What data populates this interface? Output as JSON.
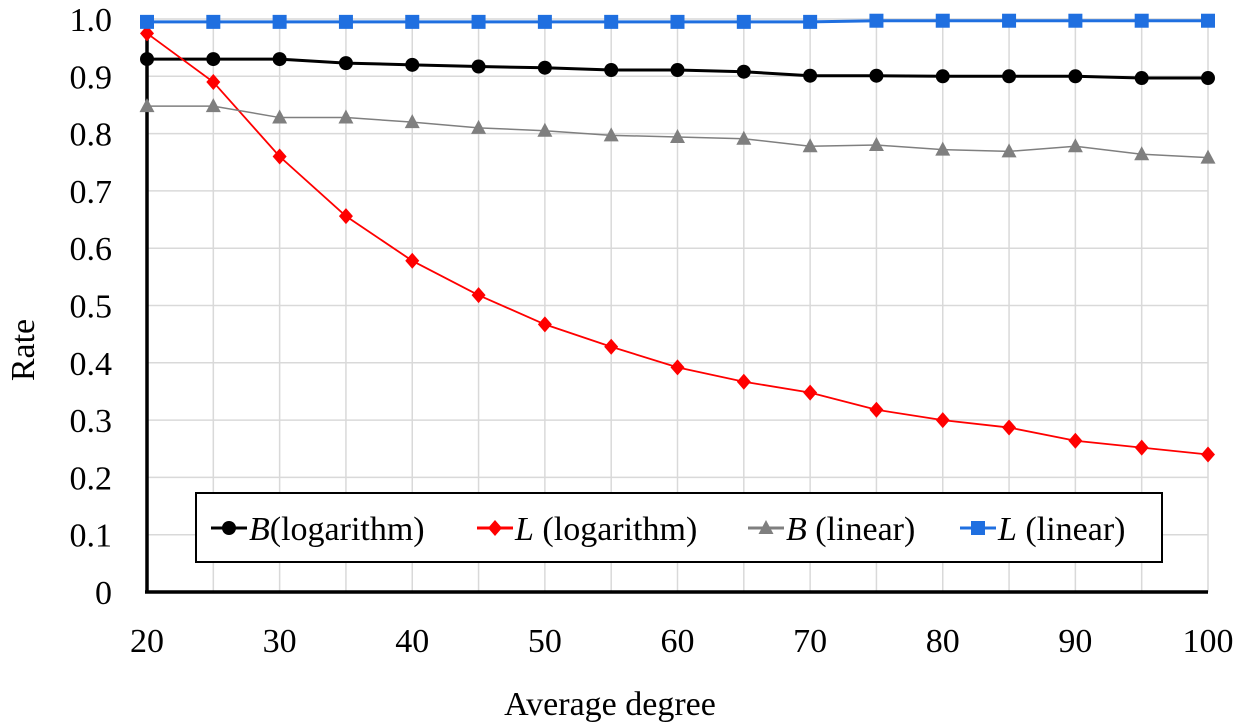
{
  "chart_data": {
    "type": "line",
    "title": "",
    "xlabel": "Average degree",
    "ylabel": "Rate",
    "x": [
      20,
      25,
      30,
      35,
      40,
      45,
      50,
      55,
      60,
      65,
      70,
      75,
      80,
      85,
      90,
      95,
      100
    ],
    "xticks": [
      "20",
      "30",
      "40",
      "50",
      "60",
      "70",
      "80",
      "90",
      "100"
    ],
    "yticks": [
      "0",
      "0.1",
      "0.2",
      "0.3",
      "0.4",
      "0.5",
      "0.6",
      "0.7",
      "0.8",
      "0.9",
      "1.0"
    ],
    "xlim": [
      20,
      100
    ],
    "ylim": [
      0,
      1.0
    ],
    "grid": true,
    "legend_position": "bottom-center",
    "series": [
      {
        "legend_symbol": "B",
        "legend_text": "(logarithm)",
        "color": "#000000",
        "marker": "circle",
        "values": [
          0.93,
          0.93,
          0.93,
          0.923,
          0.92,
          0.917,
          0.915,
          0.911,
          0.911,
          0.908,
          0.901,
          0.901,
          0.9,
          0.9,
          0.9,
          0.897,
          0.897
        ]
      },
      {
        "legend_symbol": "L",
        "legend_text": " (logarithm)",
        "color": "#ff0000",
        "marker": "diamond",
        "values": [
          0.975,
          0.89,
          0.76,
          0.656,
          0.578,
          0.518,
          0.467,
          0.428,
          0.392,
          0.367,
          0.348,
          0.318,
          0.3,
          0.287,
          0.264,
          0.252,
          0.24
        ]
      },
      {
        "legend_symbol": "B",
        "legend_text": " (linear)",
        "color": "#7f7f7f",
        "marker": "triangle",
        "values": [
          0.848,
          0.848,
          0.828,
          0.828,
          0.82,
          0.81,
          0.805,
          0.797,
          0.794,
          0.791,
          0.778,
          0.78,
          0.772,
          0.769,
          0.778,
          0.764,
          0.758
        ]
      },
      {
        "legend_symbol": "L",
        "legend_text": " (linear)",
        "color": "#1f6fe0",
        "marker": "square",
        "values": [
          0.995,
          0.995,
          0.995,
          0.995,
          0.995,
          0.995,
          0.995,
          0.995,
          0.995,
          0.995,
          0.995,
          0.997,
          0.997,
          0.997,
          0.997,
          0.997,
          0.997
        ]
      }
    ]
  }
}
